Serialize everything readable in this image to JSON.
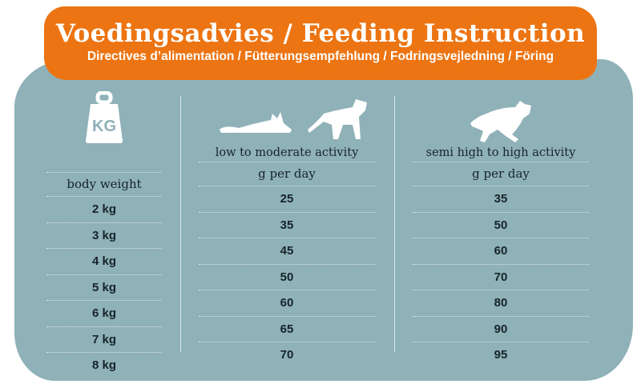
{
  "title": "Voedingsadvies / Feeding Instruction",
  "subtitle": "Directives d’alimentation / Fütterungsempfehlung / Fodringsvejledning / Föring",
  "columns": [
    {
      "icon": "kg-weight-icon",
      "icon_text": "KG",
      "header": "",
      "subheader": "body weight",
      "values": [
        "2 kg",
        "3 kg",
        "4 kg",
        "5 kg",
        "6 kg",
        "7 kg",
        "8 kg"
      ]
    },
    {
      "icon": "resting-cats-icon",
      "header": "low to moderate activity",
      "subheader": "g per day",
      "values": [
        "25",
        "35",
        "45",
        "50",
        "60",
        "65",
        "70"
      ]
    },
    {
      "icon": "running-cat-icon",
      "header": "semi high to high activity",
      "subheader": "g per day",
      "values": [
        "35",
        "50",
        "60",
        "70",
        "80",
        "90",
        "95"
      ]
    }
  ],
  "colors": {
    "orange": "#ec7412",
    "teal": "#8fb1b8"
  }
}
